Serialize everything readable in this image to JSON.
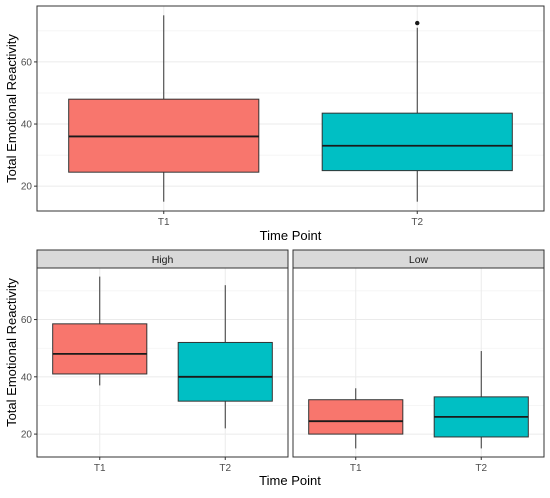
{
  "chart_data": [
    {
      "type": "boxplot",
      "title": "",
      "xlabel": "Time Point",
      "ylabel": "Total Emotional Reactivity",
      "categories": [
        "T1",
        "T2"
      ],
      "yticks": [
        20,
        40,
        60
      ],
      "ylim": [
        12,
        78
      ],
      "grid": true,
      "legend": "none",
      "boxes": [
        {
          "category": "T1",
          "min": 15,
          "q1": 24.5,
          "median": 36,
          "q3": 48,
          "max": 75,
          "outliers": [],
          "color": "#F8766D"
        },
        {
          "category": "T2",
          "min": 15,
          "q1": 25,
          "median": 33,
          "q3": 43.5,
          "max": 71,
          "outliers": [
            72.5
          ],
          "color": "#00BFC4"
        }
      ]
    },
    {
      "type": "boxplot",
      "title": "",
      "xlabel": "Time Point",
      "ylabel": "Total Emotional Reactivity",
      "categories": [
        "T1",
        "T2"
      ],
      "yticks": [
        20,
        40,
        60
      ],
      "ylim": [
        12,
        78
      ],
      "grid": true,
      "legend": "none",
      "facets": [
        {
          "label": "High",
          "boxes": [
            {
              "category": "T1",
              "min": 37,
              "q1": 41,
              "median": 48,
              "q3": 58.5,
              "max": 75,
              "outliers": [],
              "color": "#F8766D"
            },
            {
              "category": "T2",
              "min": 22,
              "q1": 31.5,
              "median": 40,
              "q3": 52,
              "max": 72,
              "outliers": [],
              "color": "#00BFC4"
            }
          ]
        },
        {
          "label": "Low",
          "boxes": [
            {
              "category": "T1",
              "min": 15,
              "q1": 20,
              "median": 24.5,
              "q3": 32,
              "max": 36,
              "outliers": [],
              "color": "#F8766D"
            },
            {
              "category": "T2",
              "min": 15,
              "q1": 19,
              "median": 26,
              "q3": 33,
              "max": 49,
              "outliers": [],
              "color": "#00BFC4"
            }
          ]
        }
      ]
    }
  ]
}
